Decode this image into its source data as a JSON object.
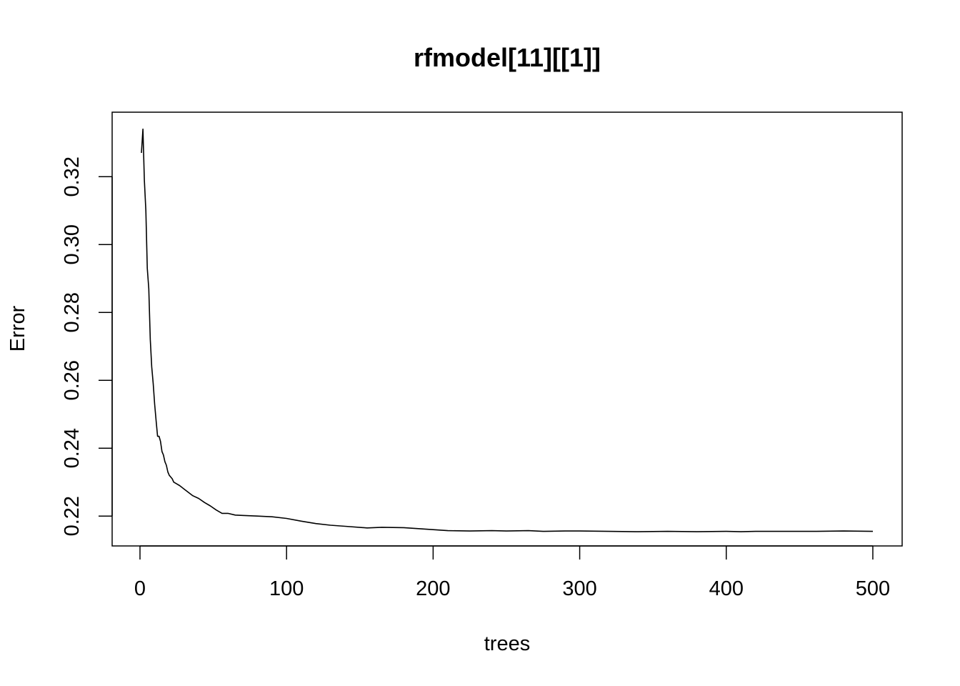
{
  "chart_data": {
    "type": "line",
    "title": "rfmodel[11][[1]]",
    "xlabel": "trees",
    "ylabel": "Error",
    "xlim": [
      -19,
      520
    ],
    "ylim": [
      0.2112,
      0.339
    ],
    "xticks": [
      0,
      100,
      200,
      300,
      400,
      500
    ],
    "yticks": [
      0.22,
      0.24,
      0.26,
      0.28,
      0.3,
      0.32
    ],
    "xtick_labels": [
      "0",
      "100",
      "200",
      "300",
      "400",
      "500"
    ],
    "ytick_labels": [
      "0.22",
      "0.24",
      "0.26",
      "0.28",
      "0.30",
      "0.32"
    ],
    "line_color": "#000000",
    "grid": false,
    "series": [
      {
        "x": [
          1,
          2,
          3,
          4,
          5,
          6,
          7,
          8,
          9,
          10,
          11,
          12,
          13,
          14,
          15,
          16,
          17,
          18,
          19,
          20,
          21,
          22,
          23,
          25,
          27,
          30,
          33,
          36,
          40,
          44,
          48,
          52,
          56,
          60,
          65,
          70,
          80,
          90,
          100,
          110,
          120,
          130,
          140,
          155,
          165,
          180,
          190,
          200,
          210,
          225,
          240,
          250,
          265,
          275,
          290,
          300,
          320,
          340,
          360,
          380,
          400,
          410,
          420,
          440,
          460,
          480,
          500
        ],
        "y": [
          0.327,
          0.334,
          0.319,
          0.31,
          0.293,
          0.287,
          0.272,
          0.264,
          0.259,
          0.253,
          0.248,
          0.2435,
          0.2435,
          0.242,
          0.239,
          0.238,
          0.236,
          0.235,
          0.233,
          0.232,
          0.2315,
          0.231,
          0.23,
          0.2295,
          0.229,
          0.228,
          0.227,
          0.226,
          0.2252,
          0.224,
          0.223,
          0.2218,
          0.2208,
          0.2208,
          0.2203,
          0.2202,
          0.22,
          0.2198,
          0.2193,
          0.2185,
          0.2178,
          0.2173,
          0.217,
          0.2165,
          0.2167,
          0.2166,
          0.2163,
          0.216,
          0.2157,
          0.2156,
          0.2157,
          0.2156,
          0.2157,
          0.2155,
          0.2156,
          0.2156,
          0.2155,
          0.2154,
          0.2155,
          0.2154,
          0.2155,
          0.2154,
          0.2155,
          0.2155,
          0.2155,
          0.2156,
          0.2155
        ]
      }
    ]
  }
}
